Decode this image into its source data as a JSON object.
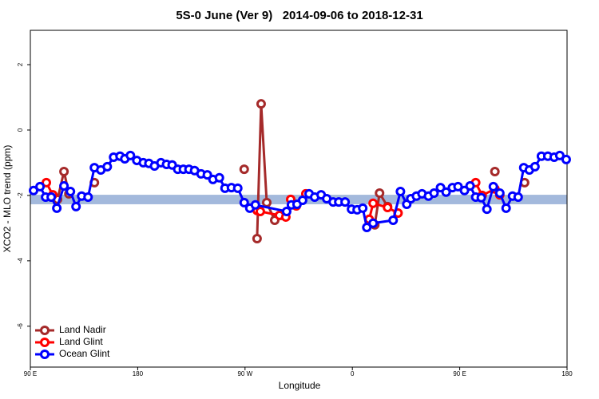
{
  "chart_data": {
    "type": "line",
    "title": "5S-0 June (Ver 9)   2014-09-06 to 2018-12-31",
    "xlabel": "Longitude",
    "ylabel": "XCO2 - MLO trend (ppm)",
    "xlim": [
      90,
      540
    ],
    "ylim": [
      -7.25,
      3.05
    ],
    "xticks": [
      {
        "value": 90,
        "label": "90 E"
      },
      {
        "value": 180,
        "label": "180"
      },
      {
        "value": 270,
        "label": "90 W"
      },
      {
        "value": 360,
        "label": "0"
      },
      {
        "value": 450,
        "label": "90 E"
      },
      {
        "value": 540,
        "label": "180"
      }
    ],
    "yticks": [
      -6,
      -4,
      -2,
      0,
      2
    ],
    "band": {
      "ylim": [
        -2.27,
        -1.98
      ],
      "color": "#a3b9dc"
    },
    "legend": "bottom-left",
    "series": [
      {
        "name": "Land Nadir",
        "color": "#a52a2a",
        "x": [
          112.8,
          118.2,
          122.3,
          null,
          143.7,
          null,
          269.3,
          null,
          280.1,
          283.5,
          288.2,
          294.9,
          300.2,
          null,
          374.1,
          378.8,
          382.8,
          389.5,
          null,
          479.5,
          null,
          504.4
        ],
        "values": [
          -2.12,
          -1.27,
          -1.95,
          null,
          -1.61,
          null,
          -1.2,
          null,
          -3.32,
          0.8,
          -2.22,
          -2.76,
          -2.61,
          null,
          -2.78,
          -2.9,
          -1.93,
          -2.34,
          null,
          -1.27,
          null,
          -1.61
        ]
      },
      {
        "name": "Land Glint",
        "color": "#ff0000",
        "x": [
          103.4,
          108.8,
          null,
          280.1,
          282.8,
          298.9,
          304.2,
          308.3,
          313.0,
          321.0,
          null,
          374.1,
          377.4,
          389.5,
          398.3,
          null,
          463.4,
          468.8,
          479.5,
          483.6
        ],
        "values": [
          -1.61,
          -1.98,
          null,
          -2.46,
          -2.49,
          -2.61,
          -2.66,
          -2.12,
          -2.32,
          -1.95,
          null,
          -2.73,
          -2.24,
          -2.37,
          -2.54,
          null,
          -1.61,
          -2.0,
          -1.8,
          -1.98
        ]
      },
      {
        "name": "Ocean Glint",
        "color": "#0000ff",
        "x": [
          92.7,
          98.1,
          102.8,
          107.5,
          112.2,
          118.2,
          123.6,
          128.3,
          133.0,
          138.4,
          143.7,
          149.1,
          154.5,
          159.8,
          165.2,
          169.2,
          173.9,
          179.3,
          184.7,
          189.4,
          194.1,
          199.5,
          204.2,
          208.9,
          213.6,
          218.3,
          223.0,
          227.7,
          233.1,
          238.4,
          243.1,
          248.5,
          253.2,
          258.6,
          263.9,
          269.3,
          274.0,
          278.7,
          304.9,
          308.9,
          313.6,
          318.3,
          323.7,
          328.4,
          333.8,
          338.5,
          343.9,
          348.6,
          353.9,
          359.3,
          364.0,
          368.7,
          372.1,
          377.4,
          394.2,
          400.3,
          405.6,
          409.0,
          413.7,
          418.4,
          423.8,
          428.5,
          433.9,
          438.6,
          443.9,
          448.6,
          454.0,
          458.7,
          463.4,
          468.1,
          472.8,
          478.2,
          483.6,
          488.9,
          494.3,
          499.0,
          503.7,
          508.4,
          513.1,
          518.5,
          523.9,
          529.2,
          533.9,
          539.3
        ],
        "values": [
          -1.85,
          -1.73,
          -2.05,
          -2.05,
          -2.39,
          -1.71,
          -1.88,
          -2.34,
          -2.02,
          -2.05,
          -1.15,
          -1.22,
          -1.12,
          -0.83,
          -0.8,
          -0.88,
          -0.78,
          -0.93,
          -1.0,
          -1.02,
          -1.1,
          -1.0,
          -1.05,
          -1.07,
          -1.2,
          -1.2,
          -1.2,
          -1.24,
          -1.34,
          -1.37,
          -1.51,
          -1.46,
          -1.78,
          -1.76,
          -1.78,
          -2.22,
          -2.39,
          -2.29,
          -2.49,
          -2.29,
          -2.27,
          -2.15,
          -1.95,
          -2.05,
          -1.98,
          -2.1,
          -2.2,
          -2.2,
          -2.2,
          -2.42,
          -2.44,
          -2.39,
          -2.98,
          -2.85,
          -2.76,
          -1.88,
          -2.27,
          -2.1,
          -2.02,
          -1.95,
          -2.02,
          -1.93,
          -1.76,
          -1.9,
          -1.76,
          -1.73,
          -1.85,
          -1.71,
          -2.05,
          -2.07,
          -2.42,
          -1.73,
          -1.93,
          -2.39,
          -2.02,
          -2.05,
          -1.15,
          -1.22,
          -1.12,
          -0.8,
          -0.8,
          -0.83,
          -0.78,
          -0.9
        ]
      }
    ]
  }
}
